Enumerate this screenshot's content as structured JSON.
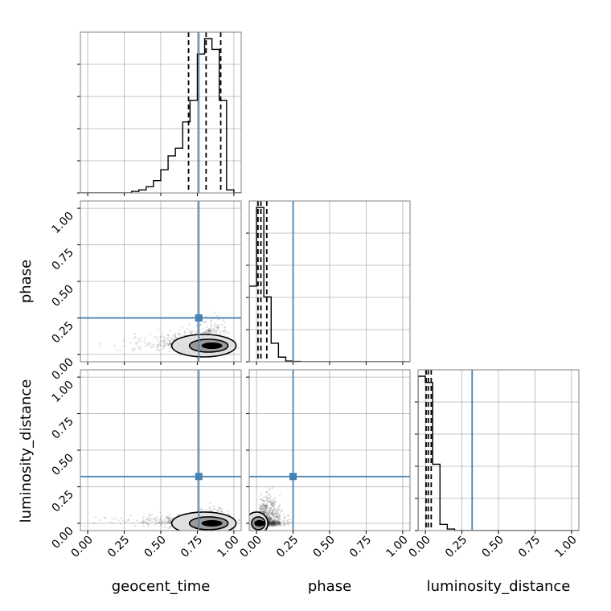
{
  "chart_data": {
    "type": "corner",
    "parameters": [
      "geocent_time",
      "phase",
      "luminosity_distance"
    ],
    "axis_labels": [
      "geocent_time",
      "phase",
      "luminosity_distance"
    ],
    "tick_labels": [
      "0.00",
      "0.25",
      "0.50",
      "0.75",
      "1.00"
    ],
    "ticks": [
      0.0,
      0.25,
      0.5,
      0.75,
      1.0
    ],
    "range": [
      -0.05,
      1.05
    ],
    "injection_values": {
      "geocent_time": 0.76,
      "phase": 0.25,
      "luminosity_distance": 0.32
    },
    "quantiles": {
      "geocent_time": [
        0.69,
        0.81,
        0.91
      ],
      "phase": [
        0.01,
        0.03,
        0.07
      ],
      "luminosity_distance": [
        0.005,
        0.02,
        0.04
      ]
    },
    "histograms": {
      "geocent_time": {
        "edges": [
          -0.05,
          0.0,
          0.05,
          0.1,
          0.15,
          0.2,
          0.25,
          0.3,
          0.35,
          0.4,
          0.45,
          0.5,
          0.55,
          0.6,
          0.65,
          0.7,
          0.75,
          0.8,
          0.85,
          0.9,
          0.95,
          1.0,
          1.05
        ],
        "counts": [
          0,
          0,
          0,
          0,
          0,
          0,
          0,
          0.01,
          0.02,
          0.04,
          0.08,
          0.15,
          0.24,
          0.29,
          0.46,
          0.6,
          0.9,
          1.0,
          0.93,
          0.6,
          0.02,
          0
        ]
      },
      "phase": {
        "edges": [
          -0.05,
          0.0,
          0.05,
          0.1,
          0.15,
          0.2,
          0.25,
          0.3,
          0.35,
          0.4,
          0.45,
          0.5,
          0.55,
          0.6,
          0.65,
          0.7,
          0.75,
          0.8,
          0.85,
          0.9,
          0.95,
          1.0,
          1.05
        ],
        "counts": [
          0.49,
          1.0,
          0.42,
          0.12,
          0.03,
          0.005,
          0.002,
          0,
          0,
          0,
          0,
          0,
          0,
          0,
          0,
          0,
          0,
          0,
          0,
          0,
          0,
          0
        ]
      },
      "luminosity_distance": {
        "edges": [
          -0.05,
          0.0,
          0.05,
          0.1,
          0.15,
          0.2,
          0.25,
          0.3,
          0.35,
          0.4,
          0.45,
          0.5,
          0.55,
          0.6,
          0.65,
          0.7,
          0.75,
          0.8,
          0.85,
          0.9,
          0.95,
          1.0,
          1.05
        ],
        "counts": [
          1.0,
          0.96,
          0.43,
          0.04,
          0.01,
          0,
          0,
          0,
          0,
          0,
          0,
          0,
          0,
          0,
          0,
          0,
          0,
          0,
          0,
          0,
          0,
          0
        ]
      }
    },
    "scatter_panels": [
      {
        "x": "geocent_time",
        "y": "phase",
        "core": [
          0.85,
          0.06
        ]
      },
      {
        "x": "geocent_time",
        "y": "luminosity_distance",
        "core": [
          0.85,
          0.0
        ]
      },
      {
        "x": "phase",
        "y": "luminosity_distance",
        "core": [
          0.02,
          0.0
        ]
      }
    ],
    "grid": true,
    "colors": {
      "histogram": "#000000",
      "injection": "#4682b4",
      "quantile": "#000000",
      "samples": "#000000",
      "grid": "#b0b0b0"
    }
  }
}
